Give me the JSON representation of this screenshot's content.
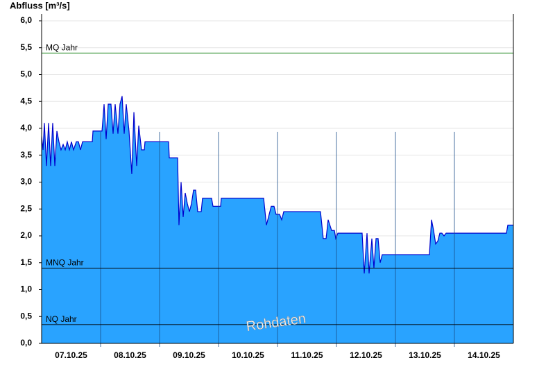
{
  "chart_data": {
    "type": "area",
    "y_label": "Abfluss [m³/s]",
    "watermark": "Rohdaten",
    "color": "#29a3ff",
    "line_color": "#0000cc",
    "grid": true,
    "xlim": [
      0,
      8
    ],
    "ylim": [
      0,
      6
    ],
    "xticks": [
      {
        "value": 0.5,
        "label": "07.10.25"
      },
      {
        "value": 1.5,
        "label": "08.10.25"
      },
      {
        "value": 2.5,
        "label": "09.10.25"
      },
      {
        "value": 3.5,
        "label": "10.10.25"
      },
      {
        "value": 4.5,
        "label": "11.10.25"
      },
      {
        "value": 5.5,
        "label": "12.10.25"
      },
      {
        "value": 6.5,
        "label": "13.10.25"
      },
      {
        "value": 7.5,
        "label": "14.10.25"
      }
    ],
    "yticks": [
      {
        "value": 0,
        "label": "0,0"
      },
      {
        "value": 0.5,
        "label": "0,5"
      },
      {
        "value": 1,
        "label": "1,0"
      },
      {
        "value": 1.5,
        "label": "1,5"
      },
      {
        "value": 2,
        "label": "2,0"
      },
      {
        "value": 2.5,
        "label": "2,5"
      },
      {
        "value": 3,
        "label": "3,0"
      },
      {
        "value": 3.5,
        "label": "3,5"
      },
      {
        "value": 4,
        "label": "4,0"
      },
      {
        "value": 4.5,
        "label": "4,5"
      },
      {
        "value": 5,
        "label": "5,0"
      },
      {
        "value": 5.5,
        "label": "5,5"
      },
      {
        "value": 6,
        "label": "6,0"
      }
    ],
    "reference_lines": [
      {
        "label": "MQ Jahr",
        "value": 5.4,
        "color": "#007700"
      },
      {
        "label": "MNQ Jahr",
        "value": 1.4,
        "color": "#000000"
      },
      {
        "label": "NQ Jahr",
        "value": 0.35,
        "color": "#000000"
      }
    ],
    "x": [
      0,
      0.024,
      0.047,
      0.082,
      0.118,
      0.153,
      0.188,
      0.224,
      0.259,
      0.294,
      0.329,
      0.365,
      0.4,
      0.435,
      0.471,
      0.506,
      0.541,
      0.588,
      0.624,
      0.659,
      0.694,
      0.859,
      0.871,
      1.024,
      1.059,
      1.094,
      1.129,
      1.176,
      1.212,
      1.247,
      1.294,
      1.329,
      1.365,
      1.4,
      1.435,
      1.482,
      1.529,
      1.565,
      1.612,
      1.647,
      1.694,
      1.741,
      1.753,
      2.153,
      2.165,
      2.306,
      2.329,
      2.365,
      2.4,
      2.435,
      2.471,
      2.506,
      2.541,
      2.576,
      2.612,
      2.647,
      2.706,
      2.729,
      2.882,
      2.906,
      3.035,
      3.047,
      3.765,
      3.812,
      3.859,
      3.894,
      3.941,
      3.976,
      4.035,
      4.071,
      4.106,
      4.729,
      4.776,
      4.824,
      4.859,
      4.918,
      4.965,
      4.988,
      5.024,
      5.435,
      5.471,
      5.518,
      5.553,
      5.6,
      5.635,
      5.671,
      5.706,
      5.741,
      5.776,
      6.576,
      6.612,
      6.647,
      6.682,
      6.718,
      6.753,
      6.788,
      6.824,
      6.859,
      7.882,
      7.906,
      8
    ],
    "values": [
      3.85,
      3.6,
      4.1,
      3.3,
      4.1,
      3.3,
      4.1,
      3.3,
      3.95,
      3.75,
      3.6,
      3.7,
      3.6,
      3.75,
      3.6,
      3.75,
      3.6,
      3.75,
      3.75,
      3.6,
      3.75,
      3.75,
      3.95,
      3.95,
      4.45,
      3.8,
      4.45,
      4.45,
      3.9,
      4.45,
      3.9,
      4.45,
      4.6,
      3.9,
      4.45,
      3.95,
      3.15,
      4.3,
      3.3,
      4.05,
      3.6,
      3.6,
      3.75,
      3.75,
      3.45,
      3.45,
      2.2,
      3.0,
      2.35,
      2.8,
      2.6,
      2.45,
      2.6,
      2.85,
      2.85,
      2.45,
      2.45,
      2.7,
      2.7,
      2.55,
      2.55,
      2.7,
      2.7,
      2.2,
      2.4,
      2.55,
      2.55,
      2.4,
      2.4,
      2.3,
      2.45,
      2.45,
      1.95,
      1.95,
      2.3,
      2.1,
      2.1,
      1.95,
      2.05,
      2.05,
      1.3,
      2.05,
      1.3,
      1.95,
      1.4,
      1.95,
      1.95,
      1.5,
      1.65,
      1.65,
      2.3,
      2.1,
      1.85,
      1.9,
      2.05,
      2.05,
      2.0,
      2.05,
      2.05,
      2.2,
      2.2
    ]
  }
}
